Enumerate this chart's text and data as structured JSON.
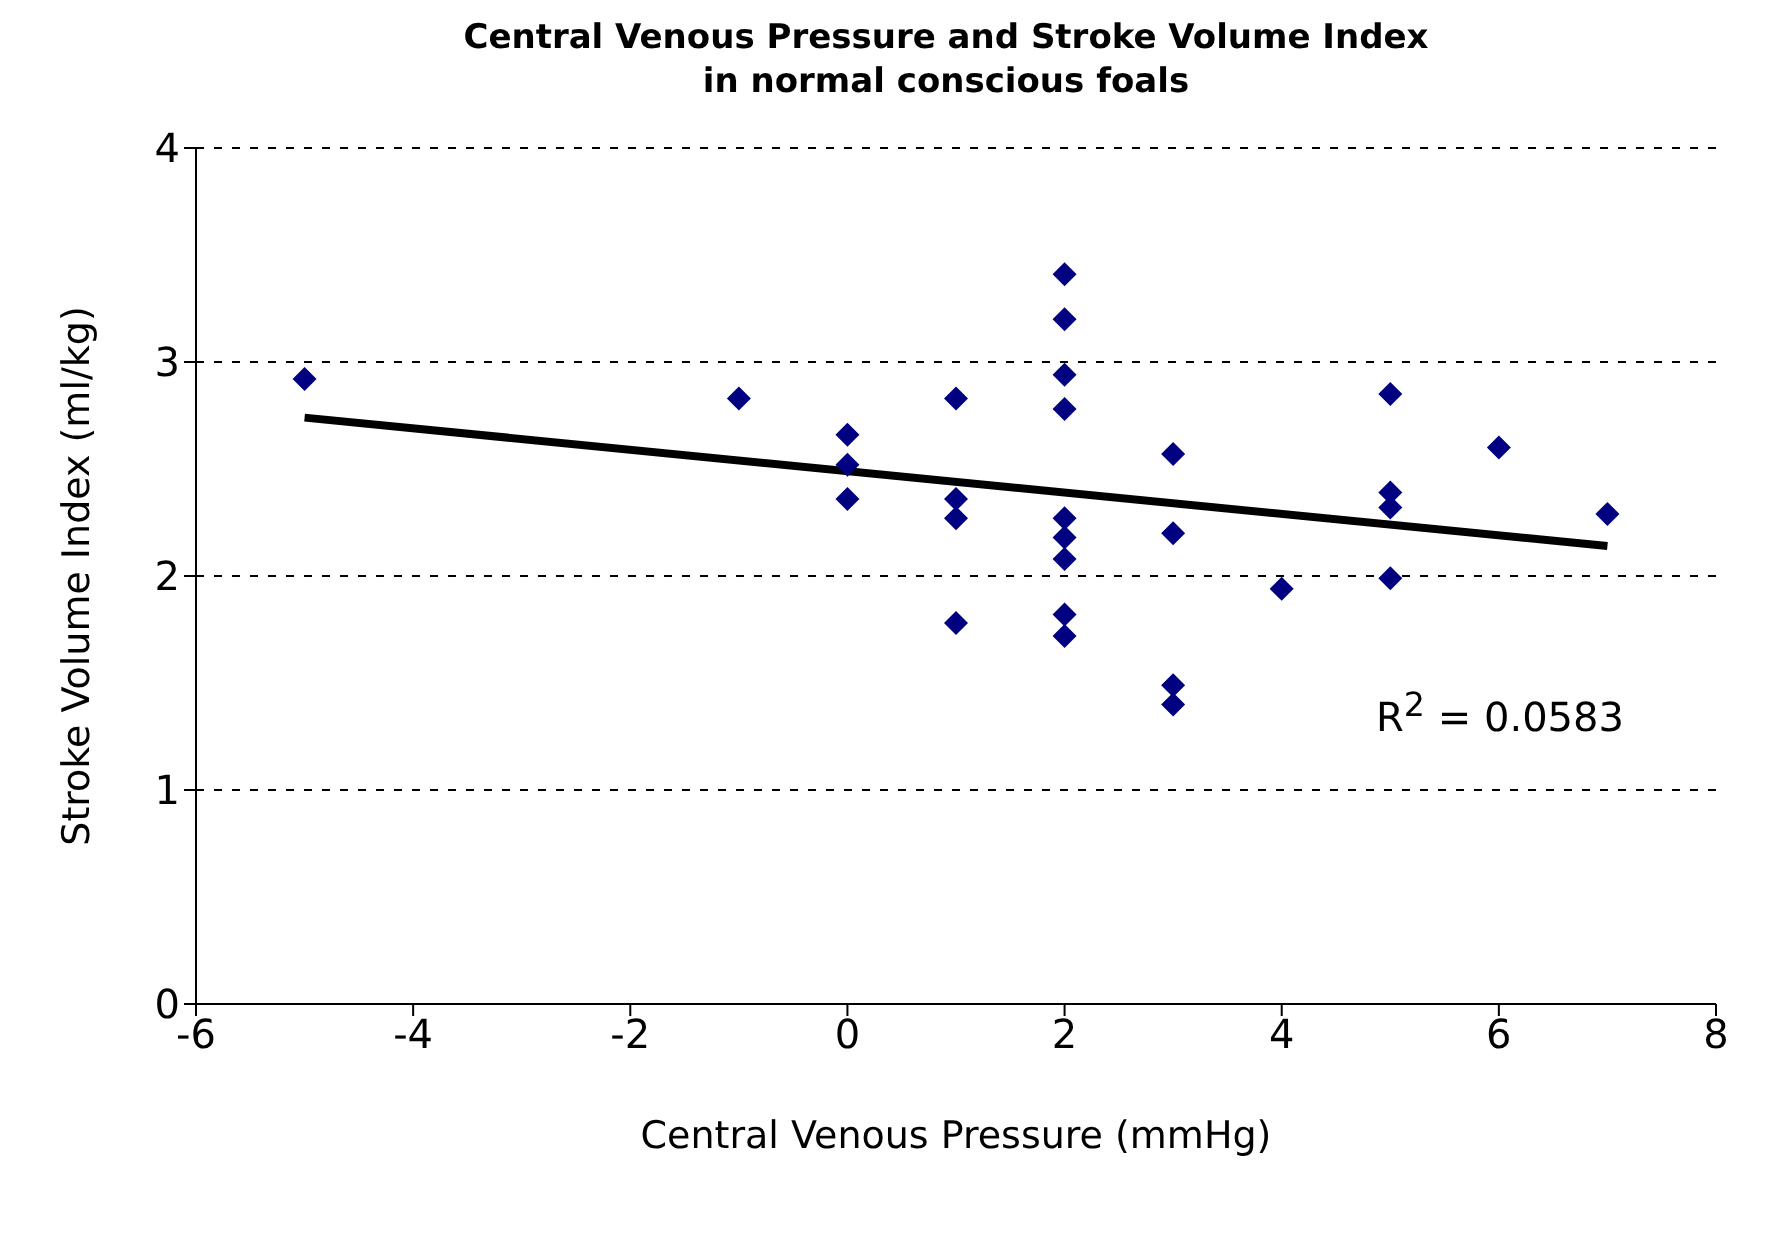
{
  "chart_data": {
    "type": "scatter",
    "title": "Central Venous Pressure and Stroke Volume Index\nin normal conscious foals",
    "xlabel": "Central Venous Pressure (mmHg)",
    "ylabel": "Stroke Volume Index (ml/kg)",
    "series": [
      {
        "color": "#000080",
        "marker": "diamond",
        "x": [
          -5,
          -1,
          0,
          0,
          0,
          1,
          1,
          1,
          1,
          2,
          2,
          2,
          2,
          2,
          2,
          2,
          2,
          2,
          3,
          3,
          3,
          3,
          4,
          5,
          5,
          5,
          5,
          6,
          7
        ],
        "values": [
          2.92,
          2.83,
          2.66,
          2.52,
          2.36,
          2.83,
          2.36,
          2.27,
          1.78,
          3.41,
          3.2,
          2.94,
          2.78,
          2.27,
          2.18,
          2.08,
          1.82,
          1.72,
          2.57,
          2.2,
          1.49,
          1.4,
          1.94,
          2.85,
          2.39,
          2.32,
          1.99,
          2.6,
          2.29
        ]
      },
      {
        "type": "line",
        "color": "#000000",
        "marker": "none",
        "x": [
          -5,
          7
        ],
        "values": [
          2.74,
          2.14
        ]
      }
    ],
    "xlim": [
      -6,
      8
    ],
    "xticks": [
      -6,
      -4,
      -2,
      0,
      2,
      4,
      6,
      8
    ],
    "ylim": [
      0,
      4
    ],
    "yticks": [
      0,
      1,
      2,
      3,
      4
    ],
    "grid": "y",
    "legend": false,
    "annotations": [
      "R$^{2}$ = 0.0583"
    ]
  }
}
